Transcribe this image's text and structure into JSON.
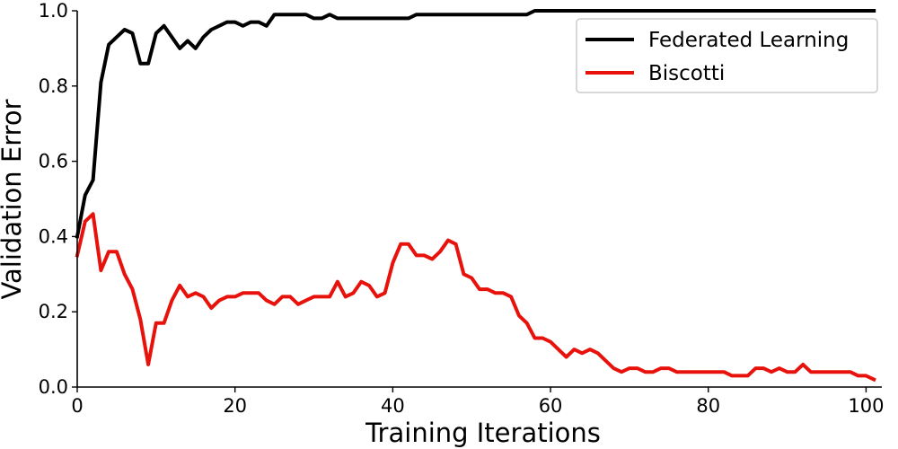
{
  "chart_data": {
    "type": "line",
    "title": "",
    "xlabel": "Training Iterations",
    "ylabel": "Validation Error",
    "xlim": [
      0,
      102
    ],
    "ylim": [
      0,
      1.0
    ],
    "xticks": [
      0,
      20,
      40,
      60,
      80,
      100
    ],
    "xtick_labels": [
      "0",
      "20",
      "40",
      "60",
      "80",
      "100"
    ],
    "yticks": [
      0.0,
      0.2,
      0.4,
      0.6,
      0.8,
      1.0
    ],
    "ytick_labels": [
      "0.0",
      "0.2",
      "0.4",
      "0.6",
      "0.8",
      "1.0"
    ],
    "grid": false,
    "legend_position": "top-right",
    "series": [
      {
        "name": "Federated Learning",
        "color": "#000000",
        "x": [
          0,
          1,
          2,
          3,
          4,
          5,
          6,
          7,
          8,
          9,
          10,
          11,
          12,
          13,
          14,
          15,
          16,
          17,
          18,
          19,
          20,
          21,
          22,
          23,
          24,
          25,
          26,
          27,
          28,
          29,
          30,
          31,
          32,
          33,
          34,
          35,
          36,
          37,
          38,
          39,
          40,
          41,
          42,
          43,
          44,
          45,
          46,
          47,
          48,
          49,
          50,
          51,
          52,
          53,
          54,
          55,
          56,
          57,
          58,
          59,
          60,
          61,
          62,
          63,
          64,
          65,
          66,
          67,
          68,
          69,
          70,
          71,
          72,
          73,
          74,
          75,
          76,
          77,
          78,
          79,
          80,
          81,
          82,
          83,
          84,
          85,
          86,
          87,
          88,
          89,
          90,
          91,
          92,
          93,
          94,
          95,
          96,
          97,
          98,
          99,
          100,
          101
        ],
        "y": [
          0.4,
          0.51,
          0.55,
          0.81,
          0.91,
          0.93,
          0.95,
          0.94,
          0.86,
          0.86,
          0.94,
          0.96,
          0.93,
          0.9,
          0.92,
          0.9,
          0.93,
          0.95,
          0.96,
          0.97,
          0.97,
          0.96,
          0.97,
          0.97,
          0.96,
          0.99,
          0.99,
          0.99,
          0.99,
          0.99,
          0.98,
          0.98,
          0.99,
          0.98,
          0.98,
          0.98,
          0.98,
          0.98,
          0.98,
          0.98,
          0.98,
          0.98,
          0.98,
          0.99,
          0.99,
          0.99,
          0.99,
          0.99,
          0.99,
          0.99,
          0.99,
          0.99,
          0.99,
          0.99,
          0.99,
          0.99,
          0.99,
          0.99,
          1.0,
          1.0,
          1.0,
          1.0,
          1.0,
          1.0,
          1.0,
          1.0,
          1.0,
          1.0,
          1.0,
          1.0,
          1.0,
          1.0,
          1.0,
          1.0,
          1.0,
          1.0,
          1.0,
          1.0,
          1.0,
          1.0,
          1.0,
          1.0,
          1.0,
          1.0,
          1.0,
          1.0,
          1.0,
          1.0,
          1.0,
          1.0,
          1.0,
          1.0,
          1.0,
          1.0,
          1.0,
          1.0,
          1.0,
          1.0,
          1.0,
          1.0,
          1.0,
          1.0
        ]
      },
      {
        "name": "Biscotti",
        "color": "#e8120c",
        "x": [
          0,
          1,
          2,
          3,
          4,
          5,
          6,
          7,
          8,
          9,
          10,
          11,
          12,
          13,
          14,
          15,
          16,
          17,
          18,
          19,
          20,
          21,
          22,
          23,
          24,
          25,
          26,
          27,
          28,
          29,
          30,
          31,
          32,
          33,
          34,
          35,
          36,
          37,
          38,
          39,
          40,
          41,
          42,
          43,
          44,
          45,
          46,
          47,
          48,
          49,
          50,
          51,
          52,
          53,
          54,
          55,
          56,
          57,
          58,
          59,
          60,
          61,
          62,
          63,
          64,
          65,
          66,
          67,
          68,
          69,
          70,
          71,
          72,
          73,
          74,
          75,
          76,
          77,
          78,
          79,
          80,
          81,
          82,
          83,
          84,
          85,
          86,
          87,
          88,
          89,
          90,
          91,
          92,
          93,
          94,
          95,
          96,
          97,
          98,
          99,
          100,
          101
        ],
        "y": [
          0.35,
          0.44,
          0.46,
          0.31,
          0.36,
          0.36,
          0.3,
          0.26,
          0.18,
          0.06,
          0.17,
          0.17,
          0.23,
          0.27,
          0.24,
          0.25,
          0.24,
          0.21,
          0.23,
          0.24,
          0.24,
          0.25,
          0.25,
          0.25,
          0.23,
          0.22,
          0.24,
          0.24,
          0.22,
          0.23,
          0.24,
          0.24,
          0.24,
          0.28,
          0.24,
          0.25,
          0.28,
          0.27,
          0.24,
          0.25,
          0.33,
          0.38,
          0.38,
          0.35,
          0.35,
          0.34,
          0.36,
          0.39,
          0.38,
          0.3,
          0.29,
          0.26,
          0.26,
          0.25,
          0.25,
          0.24,
          0.19,
          0.17,
          0.13,
          0.13,
          0.12,
          0.1,
          0.08,
          0.1,
          0.09,
          0.1,
          0.09,
          0.07,
          0.05,
          0.04,
          0.05,
          0.05,
          0.04,
          0.04,
          0.05,
          0.05,
          0.04,
          0.04,
          0.04,
          0.04,
          0.04,
          0.04,
          0.04,
          0.03,
          0.03,
          0.03,
          0.05,
          0.05,
          0.04,
          0.05,
          0.04,
          0.04,
          0.06,
          0.04,
          0.04,
          0.04,
          0.04,
          0.04,
          0.04,
          0.03,
          0.03,
          0.02
        ]
      }
    ]
  }
}
